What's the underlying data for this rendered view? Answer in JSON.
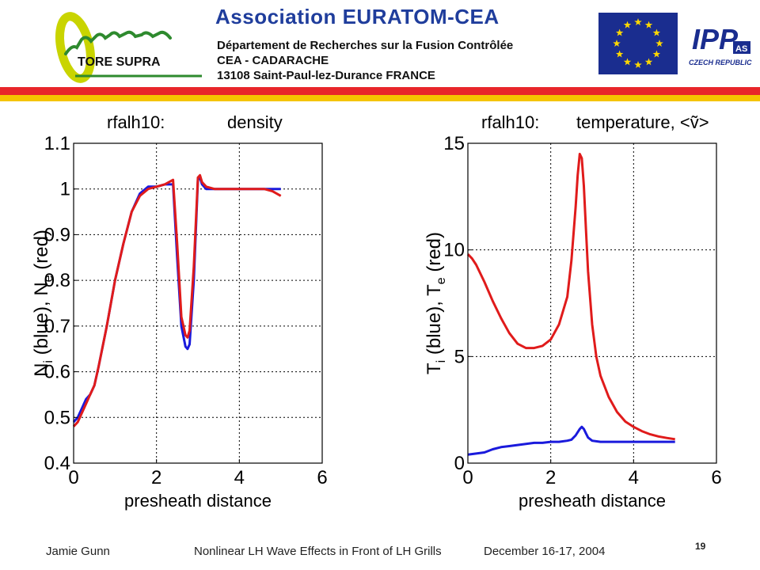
{
  "header": {
    "title": "Association  EURATOM-CEA",
    "line1": "Département de Recherches sur la Fusion Contrôlée",
    "line2": "CEA - CADARACHE",
    "line3": "13108 Saint-Paul-lez-Durance   FRANCE",
    "logo_text": "TORE SUPRA",
    "ipp_logo_text": "IPP",
    "ipp_badge_text": "AS",
    "ipp_caption": "CZECH REPUBLIC",
    "colors": {
      "title": "#1f3d9c",
      "stripe_red": "#e8262a",
      "stripe_yellow": "#f5c400",
      "eu_blue": "#1a2d8f",
      "eu_star": "#ffd800"
    }
  },
  "footer": {
    "author": "Jamie Gunn",
    "talk_title": "Nonlinear LH Wave Effects in Front of LH Grills",
    "date": "December 16-17, 2004",
    "page": "19"
  },
  "chart_data": [
    {
      "type": "line",
      "title_left": "rfalh10:",
      "title_right": "density",
      "xlabel": "presheath distance",
      "ylabel_parts": [
        "N",
        "i",
        " (blue),   N",
        "e",
        " (red)"
      ],
      "xlim": [
        0,
        6
      ],
      "ylim": [
        0.4,
        1.1
      ],
      "xticks": [
        0,
        2,
        4,
        6
      ],
      "yticks": [
        0.4,
        0.5,
        0.6,
        0.7,
        0.8,
        0.9,
        1,
        1.1
      ],
      "grid": true,
      "series": [
        {
          "color": "#1a1adc",
          "x": [
            0,
            0.1,
            0.2,
            0.3,
            0.4,
            0.5,
            0.6,
            0.8,
            1.0,
            1.2,
            1.4,
            1.6,
            1.8,
            2.0,
            2.2,
            2.4,
            2.5,
            2.6,
            2.7,
            2.75,
            2.8,
            2.9,
            3.0,
            3.05,
            3.1,
            3.2,
            3.4,
            3.6,
            3.8,
            4.0,
            4.2,
            4.4,
            4.6,
            4.8,
            5.0
          ],
          "y": [
            0.49,
            0.5,
            0.52,
            0.54,
            0.55,
            0.57,
            0.61,
            0.7,
            0.8,
            0.88,
            0.95,
            0.99,
            1.005,
            1.005,
            1.01,
            1.01,
            0.85,
            0.7,
            0.655,
            0.65,
            0.66,
            0.8,
            1.02,
            1.025,
            1.01,
            1.0,
            1.0,
            1.0,
            1.0,
            1.0,
            1.0,
            1.0,
            1.0,
            1.0,
            1.0
          ]
        },
        {
          "color": "#e01b1b",
          "x": [
            0,
            0.1,
            0.2,
            0.3,
            0.4,
            0.5,
            0.6,
            0.8,
            1.0,
            1.2,
            1.4,
            1.6,
            1.8,
            2.0,
            2.2,
            2.4,
            2.5,
            2.6,
            2.7,
            2.75,
            2.8,
            2.9,
            3.0,
            3.05,
            3.1,
            3.2,
            3.4,
            3.6,
            3.8,
            4.0,
            4.2,
            4.4,
            4.6,
            4.8,
            5.0
          ],
          "y": [
            0.48,
            0.49,
            0.51,
            0.53,
            0.55,
            0.57,
            0.61,
            0.7,
            0.8,
            0.88,
            0.95,
            0.985,
            1.0,
            1.005,
            1.01,
            1.02,
            0.88,
            0.72,
            0.68,
            0.675,
            0.69,
            0.83,
            1.025,
            1.03,
            1.015,
            1.005,
            1.0,
            1.0,
            1.0,
            1.0,
            1.0,
            1.0,
            1.0,
            0.995,
            0.985
          ]
        }
      ]
    },
    {
      "type": "line",
      "title_left": "rfalh10:",
      "title_right": "temperature, <ṽ>",
      "xlabel": "presheath distance",
      "ylabel_parts": [
        "T",
        "i",
        " (blue),   T",
        "e",
        " (red)"
      ],
      "xlim": [
        0,
        6
      ],
      "ylim": [
        0,
        15
      ],
      "xticks": [
        0,
        2,
        4,
        6
      ],
      "yticks": [
        0,
        5,
        10,
        15
      ],
      "grid": true,
      "series": [
        {
          "color": "#1a1adc",
          "x": [
            0,
            0.2,
            0.4,
            0.6,
            0.8,
            1.0,
            1.2,
            1.4,
            1.6,
            1.8,
            2.0,
            2.2,
            2.4,
            2.5,
            2.6,
            2.7,
            2.75,
            2.8,
            2.85,
            2.9,
            3.0,
            3.2,
            3.5,
            4.0,
            4.5,
            5.0
          ],
          "y": [
            0.4,
            0.45,
            0.5,
            0.65,
            0.75,
            0.8,
            0.85,
            0.9,
            0.95,
            0.95,
            1.0,
            1.0,
            1.05,
            1.1,
            1.3,
            1.6,
            1.7,
            1.6,
            1.4,
            1.2,
            1.05,
            1.0,
            1.0,
            1.0,
            1.0,
            1.0
          ]
        },
        {
          "color": "#e01b1b",
          "x": [
            0,
            0.1,
            0.2,
            0.4,
            0.6,
            0.8,
            1.0,
            1.2,
            1.4,
            1.6,
            1.8,
            2.0,
            2.2,
            2.4,
            2.5,
            2.6,
            2.65,
            2.7,
            2.75,
            2.8,
            2.85,
            2.9,
            3.0,
            3.1,
            3.2,
            3.4,
            3.6,
            3.8,
            4.0,
            4.2,
            4.4,
            4.6,
            4.8,
            5.0
          ],
          "y": [
            9.8,
            9.6,
            9.3,
            8.5,
            7.6,
            6.8,
            6.1,
            5.6,
            5.4,
            5.4,
            5.5,
            5.8,
            6.5,
            7.8,
            9.5,
            12.0,
            13.5,
            14.5,
            14.3,
            13.0,
            11.0,
            9.0,
            6.5,
            5.0,
            4.1,
            3.1,
            2.4,
            1.95,
            1.7,
            1.5,
            1.35,
            1.25,
            1.18,
            1.12
          ]
        }
      ]
    }
  ]
}
